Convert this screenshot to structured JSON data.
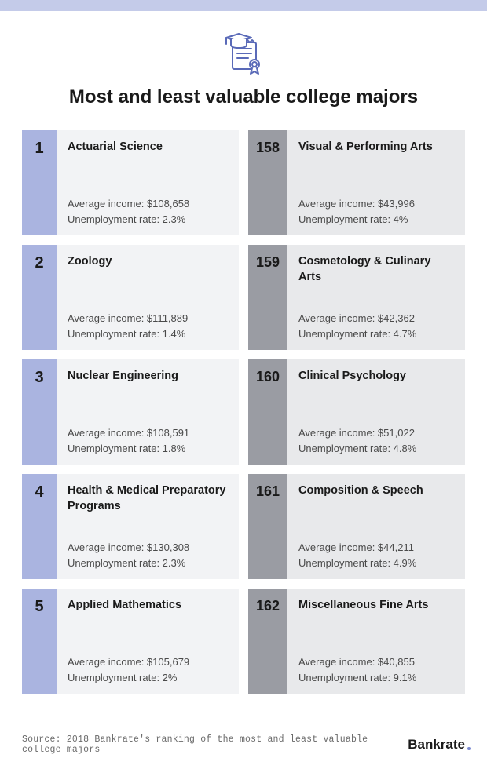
{
  "colors": {
    "topbar": "#c4cbe9",
    "rank_left_bg": "#aab4e0",
    "rank_right_bg": "#9a9ca3",
    "body_left_bg": "#f2f3f5",
    "body_right_bg": "#e8e9eb",
    "icon_stroke": "#5a6ab8",
    "text_primary": "#1a1a1a",
    "text_secondary": "#4a4a4a",
    "brand_dot": "#7b8ad1"
  },
  "title": "Most and least valuable college majors",
  "labels": {
    "income_prefix": "Average income: ",
    "unemployment_prefix": "Unemployment rate: "
  },
  "left_column": [
    {
      "rank": "1",
      "major": "Actuarial Science",
      "income": "$108,658",
      "unemployment": "2.3%"
    },
    {
      "rank": "2",
      "major": "Zoology",
      "income": "$111,889",
      "unemployment": "1.4%"
    },
    {
      "rank": "3",
      "major": "Nuclear Engineering",
      "income": "$108,591",
      "unemployment": "1.8%"
    },
    {
      "rank": "4",
      "major": "Health & Medical Preparatory Programs",
      "income": "$130,308",
      "unemployment": "2.3%"
    },
    {
      "rank": "5",
      "major": "Applied Mathematics",
      "income": "$105,679",
      "unemployment": "2%"
    }
  ],
  "right_column": [
    {
      "rank": "158",
      "major": "Visual & Performing Arts",
      "income": "$43,996",
      "unemployment": "4%"
    },
    {
      "rank": "159",
      "major": "Cosmetology & Culinary Arts",
      "income": "$42,362",
      "unemployment": "4.7%"
    },
    {
      "rank": "160",
      "major": "Clinical Psychology",
      "income": "$51,022",
      "unemployment": "4.8%"
    },
    {
      "rank": "161",
      "major": "Composition & Speech",
      "income": "$44,211",
      "unemployment": "4.9%"
    },
    {
      "rank": "162",
      "major": "Miscellaneous Fine Arts",
      "income": "$40,855",
      "unemployment": "9.1%"
    }
  ],
  "source": "Source: 2018 Bankrate's ranking of the most and least valuable college majors",
  "brand": "Bankrate"
}
